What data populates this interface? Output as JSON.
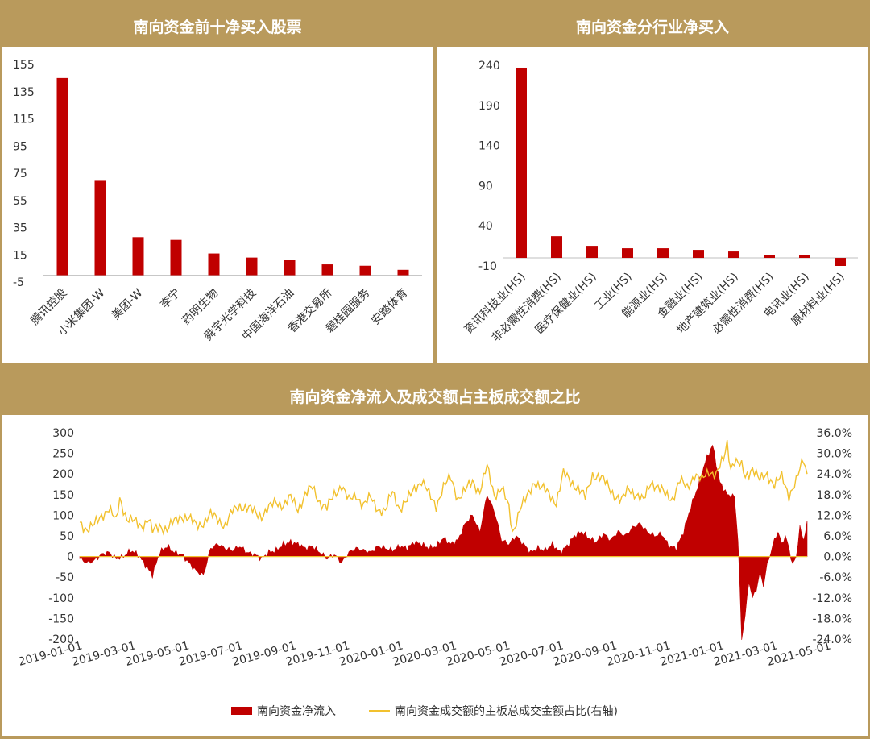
{
  "charts": {
    "top_left": {
      "title": "南向资金前十净买入股票",
      "type": "bar",
      "categories": [
        "腾讯控股",
        "小米集团-W",
        "美团-W",
        "李宁",
        "药明生物",
        "舜宇光学科技",
        "中国海洋石油",
        "香港交易所",
        "碧桂园服务",
        "安踏体育"
      ],
      "values": [
        145,
        70,
        28,
        26,
        16,
        13,
        11,
        8,
        7,
        4
      ],
      "yticks": [
        "155",
        "135",
        "115",
        "95",
        "75",
        "55",
        "35",
        "15",
        "-5"
      ],
      "ylim": [
        -5,
        155
      ]
    },
    "top_right": {
      "title": "南向资金分行业净买入",
      "type": "bar",
      "categories": [
        "资讯科技业(HS)",
        "非必需性消费(HS)",
        "医疗保健业(HS)",
        "工业(HS)",
        "能源业(HS)",
        "金融业(HS)",
        "地产建筑业(HS)",
        "必需性消费(HS)",
        "电讯业(HS)",
        "原材料业(HS)"
      ],
      "values": [
        237,
        27,
        15,
        12,
        12,
        10,
        8,
        4,
        4,
        -10
      ],
      "yticks": [
        "240",
        "190",
        "140",
        "90",
        "40",
        "-10"
      ],
      "ylim": [
        -10,
        240
      ]
    },
    "bottom": {
      "title": "南向资金净流入及成交额占主板成交额之比",
      "type": "bar+line",
      "left_ticks": [
        "300",
        "250",
        "200",
        "150",
        "100",
        "50",
        "0",
        "-50",
        "-100",
        "-150",
        "-200"
      ],
      "right_ticks": [
        "36.0%",
        "30.0%",
        "24.0%",
        "18.0%",
        "12.0%",
        "6.0%",
        "0.0%",
        "-6.0%",
        "-12.0%",
        "-18.0%",
        "-24.0%"
      ],
      "x_ticks": [
        "2019-01-01",
        "2019-03-01",
        "2019-05-01",
        "2019-07-01",
        "2019-09-01",
        "2019-11-01",
        "2020-01-01",
        "2020-03-01",
        "2020-05-01",
        "2020-07-01",
        "2020-09-01",
        "2020-11-01",
        "2021-01-01",
        "2021-03-01",
        "2021-05-01"
      ],
      "ylim_left": [
        -200,
        300
      ],
      "ylim_right": [
        -24,
        36
      ],
      "legend": {
        "bar_label": "南向资金净流入",
        "line_label": "南向资金成交额的主板总成交金额占比(右轴)"
      },
      "series_knots": {
        "net_inflow": [
          [
            0,
            -5
          ],
          [
            4,
            -15
          ],
          [
            8,
            -10
          ],
          [
            12,
            5
          ],
          [
            16,
            10
          ],
          [
            20,
            -5
          ],
          [
            24,
            0
          ],
          [
            28,
            15
          ],
          [
            32,
            5
          ],
          [
            36,
            -20
          ],
          [
            40,
            -45
          ],
          [
            44,
            10
          ],
          [
            48,
            25
          ],
          [
            52,
            10
          ],
          [
            56,
            5
          ],
          [
            60,
            -15
          ],
          [
            64,
            -35
          ],
          [
            68,
            -45
          ],
          [
            72,
            20
          ],
          [
            76,
            30
          ],
          [
            80,
            20
          ],
          [
            84,
            15
          ],
          [
            88,
            25
          ],
          [
            92,
            10
          ],
          [
            96,
            5
          ],
          [
            100,
            -5
          ],
          [
            104,
            10
          ],
          [
            108,
            15
          ],
          [
            112,
            30
          ],
          [
            116,
            35
          ],
          [
            120,
            30
          ],
          [
            124,
            20
          ],
          [
            128,
            25
          ],
          [
            132,
            10
          ],
          [
            136,
            -5
          ],
          [
            140,
            5
          ],
          [
            144,
            -15
          ],
          [
            148,
            10
          ],
          [
            152,
            20
          ],
          [
            156,
            15
          ],
          [
            160,
            10
          ],
          [
            164,
            25
          ],
          [
            168,
            20
          ],
          [
            172,
            15
          ],
          [
            176,
            25
          ],
          [
            180,
            20
          ],
          [
            184,
            35
          ],
          [
            188,
            30
          ],
          [
            192,
            20
          ],
          [
            196,
            25
          ],
          [
            200,
            45
          ],
          [
            204,
            30
          ],
          [
            208,
            40
          ],
          [
            212,
            80
          ],
          [
            216,
            100
          ],
          [
            220,
            60
          ],
          [
            224,
            150
          ],
          [
            228,
            110
          ],
          [
            232,
            40
          ],
          [
            236,
            30
          ],
          [
            240,
            50
          ],
          [
            244,
            30
          ],
          [
            248,
            10
          ],
          [
            252,
            20
          ],
          [
            256,
            15
          ],
          [
            260,
            30
          ],
          [
            264,
            10
          ],
          [
            268,
            25
          ],
          [
            272,
            50
          ],
          [
            276,
            60
          ],
          [
            280,
            45
          ],
          [
            284,
            35
          ],
          [
            288,
            55
          ],
          [
            292,
            40
          ],
          [
            296,
            60
          ],
          [
            300,
            50
          ],
          [
            304,
            70
          ],
          [
            308,
            80
          ],
          [
            312,
            60
          ],
          [
            316,
            50
          ],
          [
            320,
            55
          ],
          [
            324,
            25
          ],
          [
            328,
            20
          ],
          [
            332,
            60
          ],
          [
            336,
            120
          ],
          [
            340,
            170
          ],
          [
            344,
            230
          ],
          [
            348,
            270
          ],
          [
            352,
            180
          ],
          [
            356,
            150
          ],
          [
            360,
            145
          ],
          [
            362,
            40
          ],
          [
            364,
            -200
          ],
          [
            366,
            -140
          ],
          [
            368,
            -60
          ],
          [
            370,
            -100
          ],
          [
            372,
            -80
          ],
          [
            374,
            -40
          ],
          [
            376,
            -70
          ],
          [
            378,
            -20
          ],
          [
            380,
            10
          ],
          [
            382,
            40
          ],
          [
            384,
            60
          ],
          [
            386,
            30
          ],
          [
            388,
            50
          ],
          [
            390,
            20
          ],
          [
            392,
            -20
          ],
          [
            394,
            0
          ],
          [
            396,
            70
          ],
          [
            398,
            40
          ],
          [
            400,
            80
          ]
        ],
        "turnover_pct": [
          [
            0,
            10
          ],
          [
            4,
            8
          ],
          [
            8,
            9
          ],
          [
            12,
            12
          ],
          [
            16,
            14
          ],
          [
            20,
            10
          ],
          [
            22,
            17
          ],
          [
            26,
            11
          ],
          [
            30,
            10
          ],
          [
            34,
            9
          ],
          [
            38,
            11
          ],
          [
            40,
            7
          ],
          [
            44,
            9
          ],
          [
            48,
            8
          ],
          [
            52,
            10
          ],
          [
            56,
            12
          ],
          [
            60,
            11
          ],
          [
            64,
            9
          ],
          [
            68,
            10
          ],
          [
            72,
            12
          ],
          [
            76,
            11
          ],
          [
            80,
            9
          ],
          [
            84,
            13
          ],
          [
            88,
            15
          ],
          [
            92,
            14
          ],
          [
            96,
            13
          ],
          [
            100,
            12
          ],
          [
            104,
            14
          ],
          [
            108,
            16
          ],
          [
            112,
            15
          ],
          [
            116,
            17
          ],
          [
            120,
            14
          ],
          [
            124,
            18
          ],
          [
            128,
            20
          ],
          [
            132,
            16
          ],
          [
            136,
            14
          ],
          [
            140,
            18
          ],
          [
            144,
            21
          ],
          [
            148,
            16
          ],
          [
            152,
            18
          ],
          [
            156,
            15
          ],
          [
            160,
            17
          ],
          [
            164,
            14
          ],
          [
            168,
            13
          ],
          [
            172,
            19
          ],
          [
            176,
            14
          ],
          [
            180,
            16
          ],
          [
            184,
            20
          ],
          [
            188,
            22
          ],
          [
            192,
            18
          ],
          [
            196,
            15
          ],
          [
            200,
            20
          ],
          [
            204,
            23
          ],
          [
            208,
            17
          ],
          [
            212,
            19
          ],
          [
            216,
            22
          ],
          [
            220,
            19
          ],
          [
            224,
            26
          ],
          [
            228,
            18
          ],
          [
            232,
            20
          ],
          [
            236,
            14
          ],
          [
            238,
            7
          ],
          [
            242,
            14
          ],
          [
            246,
            17
          ],
          [
            250,
            22
          ],
          [
            254,
            20
          ],
          [
            258,
            18
          ],
          [
            262,
            16
          ],
          [
            266,
            24
          ],
          [
            270,
            22
          ],
          [
            274,
            20
          ],
          [
            278,
            17
          ],
          [
            282,
            24
          ],
          [
            286,
            23
          ],
          [
            290,
            21
          ],
          [
            294,
            18
          ],
          [
            298,
            16
          ],
          [
            302,
            20
          ],
          [
            306,
            18
          ],
          [
            310,
            16
          ],
          [
            314,
            22
          ],
          [
            318,
            20
          ],
          [
            322,
            18
          ],
          [
            326,
            17
          ],
          [
            330,
            22
          ],
          [
            334,
            20
          ],
          [
            338,
            24
          ],
          [
            342,
            22
          ],
          [
            346,
            25
          ],
          [
            350,
            24
          ],
          [
            354,
            28
          ],
          [
            356,
            33
          ],
          [
            358,
            26
          ],
          [
            360,
            28
          ],
          [
            364,
            26
          ],
          [
            366,
            23
          ],
          [
            370,
            26
          ],
          [
            374,
            22
          ],
          [
            378,
            24
          ],
          [
            382,
            21
          ],
          [
            386,
            23
          ],
          [
            390,
            18
          ],
          [
            394,
            22
          ],
          [
            398,
            28
          ],
          [
            400,
            24
          ]
        ]
      }
    }
  },
  "colors": {
    "border": "#B99A5C",
    "bar": "#C00000",
    "line": "#F2C12E",
    "axis": "#BFBFBF",
    "text": "#333333"
  }
}
